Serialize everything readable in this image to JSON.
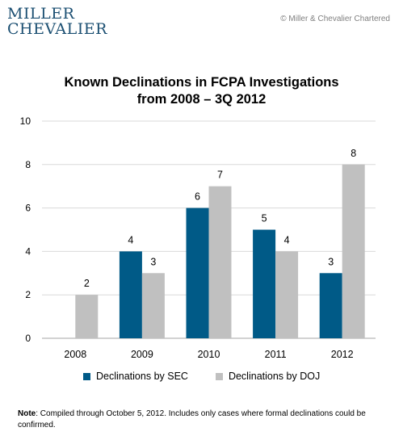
{
  "header": {
    "logo_line1": "MILLER",
    "logo_line2": "CHEVALIER",
    "copyright": "© Miller & Chevalier Chartered"
  },
  "chart_data": {
    "type": "bar",
    "title_line1": "Known Declinations in FCPA Investigations",
    "title_line2": "from 2008 – 3Q 2012",
    "categories": [
      "2008",
      "2009",
      "2010",
      "2011",
      "2012"
    ],
    "series": [
      {
        "name": "Declinations by SEC",
        "values": [
          0,
          4,
          6,
          5,
          3
        ],
        "color": "#005a87"
      },
      {
        "name": "Declinations by DOJ",
        "values": [
          2,
          3,
          7,
          4,
          8
        ],
        "color": "#c0c0c0"
      }
    ],
    "data_labels": [
      [
        null,
        "4",
        "6",
        "5",
        "3"
      ],
      [
        "2",
        "3",
        "7",
        "4",
        "8"
      ]
    ],
    "ylim": [
      0,
      10
    ],
    "yticks": [
      "0",
      "2",
      "4",
      "6",
      "8",
      "10"
    ],
    "grid": true,
    "legend_position": "bottom"
  },
  "note": {
    "label": "Note",
    "text": ": Compiled through October 5, 2012. Includes only cases where formal declinations could be confirmed."
  }
}
